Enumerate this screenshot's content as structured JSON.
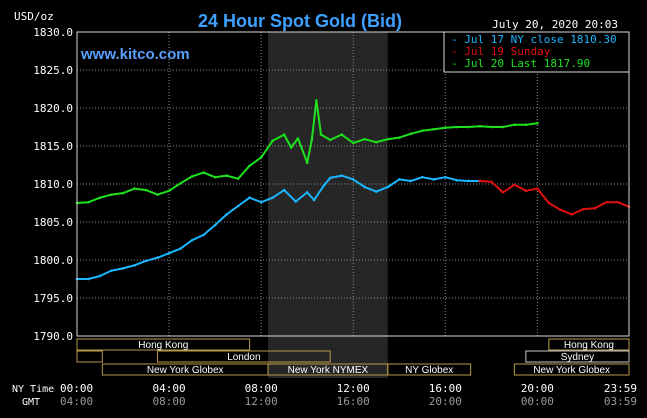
{
  "chart_data": {
    "type": "line",
    "title": "24 Hour Spot Gold (Bid)",
    "ylabel": "USD/oz",
    "timestamp": "July 20, 2020 20:03",
    "brand": "www.kitco.com",
    "ylim": [
      1790,
      1830
    ],
    "y_ticks": [
      "1830.0",
      "1825.0",
      "1820.0",
      "1815.0",
      "1810.0",
      "1805.0",
      "1800.0",
      "1795.0",
      "1790.0"
    ],
    "x_row_label": "NY Time",
    "x_ticks": [
      "00:00",
      "04:00",
      "08:00",
      "12:00",
      "16:00",
      "20:00",
      "23:59"
    ],
    "gmt_row_label": "GMT",
    "gmt_ticks": [
      "04:00",
      "08:00",
      "12:00",
      "16:00",
      "20:00",
      "00:00",
      "03:59"
    ],
    "grid": true,
    "legend_position": "top-right",
    "colors": {
      "background": "#000000",
      "plot_background": "#000000",
      "shade": "#262626",
      "grid": "#8a8a8a",
      "frame": "#d8d8d8",
      "title": "#3ea0ff",
      "brand": "#5aa0ff",
      "text": "#ffffff",
      "session_label": "#ffffff",
      "session_border": "#b89a4a",
      "session_sydney_border": "#c8c8c8"
    },
    "series": [
      {
        "name": "Jul 17 NY close 1810.30",
        "color": "#1ab6ff",
        "x": [
          0,
          0.5,
          1,
          1.5,
          2,
          2.5,
          3,
          3.5,
          4,
          4.5,
          5,
          5.5,
          6,
          6.5,
          7,
          7.5,
          8,
          8.5,
          9,
          9.5,
          10,
          10.3,
          10.7,
          11,
          11.5,
          12,
          12.5,
          13,
          13.5,
          14,
          14.5,
          15,
          15.5,
          16,
          16.5,
          17,
          17.5
        ],
        "y": [
          1797.5,
          1797.5,
          1797.9,
          1798.6,
          1798.9,
          1799.3,
          1799.9,
          1800.3,
          1800.9,
          1801.5,
          1802.6,
          1803.3,
          1804.6,
          1806.0,
          1807.1,
          1808.2,
          1807.6,
          1808.2,
          1809.2,
          1807.7,
          1808.9,
          1807.9,
          1809.7,
          1810.8,
          1811.1,
          1810.6,
          1809.6,
          1809.0,
          1809.6,
          1810.6,
          1810.4,
          1810.9,
          1810.6,
          1810.9,
          1810.5,
          1810.4,
          1810.4
        ]
      },
      {
        "name": "Jul 19 Sunday",
        "color": "#e01010",
        "x": [
          17.5,
          18,
          18.5,
          19,
          19.5,
          20,
          20.5,
          21,
          21.5,
          22,
          22.5,
          23,
          23.5,
          23.98
        ],
        "y": [
          1810.4,
          1810.3,
          1808.9,
          1809.9,
          1809.1,
          1809.4,
          1807.5,
          1806.6,
          1806.0,
          1806.7,
          1806.8,
          1807.6,
          1807.6,
          1807.0
        ]
      },
      {
        "name": "Jul 20 Last 1817.90",
        "color": "#1ee01e",
        "x": [
          0,
          0.5,
          1,
          1.5,
          2,
          2.5,
          3,
          3.5,
          4,
          4.5,
          5,
          5.5,
          6,
          6.5,
          7,
          7.5,
          8,
          8.5,
          9,
          9.3,
          9.6,
          10,
          10.2,
          10.4,
          10.6,
          11,
          11.5,
          12,
          12.5,
          13,
          13.5,
          14,
          14.5,
          15,
          15.5,
          16,
          16.5,
          17,
          17.5,
          18,
          18.5,
          19,
          19.5,
          20
        ],
        "y": [
          1807.5,
          1807.6,
          1808.2,
          1808.6,
          1808.8,
          1809.4,
          1809.2,
          1808.6,
          1809.1,
          1810.1,
          1811.0,
          1811.5,
          1810.9,
          1811.1,
          1810.7,
          1812.4,
          1813.5,
          1815.7,
          1816.5,
          1814.8,
          1816.0,
          1812.8,
          1815.8,
          1821.0,
          1816.5,
          1815.8,
          1816.5,
          1815.4,
          1815.9,
          1815.5,
          1815.9,
          1816.1,
          1816.6,
          1817.0,
          1817.2,
          1817.4,
          1817.5,
          1817.5,
          1817.6,
          1817.5,
          1817.5,
          1817.8,
          1817.8,
          1818.0
        ]
      }
    ],
    "shaded_region": {
      "x_start": 8.3,
      "x_end": 13.5
    },
    "sessions": [
      {
        "name": "Hong Kong",
        "row": 0,
        "x_start": 0,
        "x_end": 7.5
      },
      {
        "name": "Hong Kong",
        "row": 0,
        "x_start": 20.5,
        "x_end": 23.98
      },
      {
        "name": "",
        "row": 1,
        "x_start": 0,
        "x_end": 1.1
      },
      {
        "name": "London",
        "row": 1,
        "x_start": 3.5,
        "x_end": 11
      },
      {
        "name": "Sydney",
        "row": 1,
        "x_start": 19.5,
        "x_end": 23.98
      },
      {
        "name": "New York Globex",
        "row": 2,
        "x_start": 1.1,
        "x_end": 8.3
      },
      {
        "name": "New York NYMEX",
        "row": 2,
        "x_start": 8.3,
        "x_end": 13.5
      },
      {
        "name": "NY Globex",
        "row": 2,
        "x_start": 13.5,
        "x_end": 17.1
      },
      {
        "name": "New York Globex",
        "row": 2,
        "x_start": 19.0,
        "x_end": 23.98
      }
    ]
  }
}
